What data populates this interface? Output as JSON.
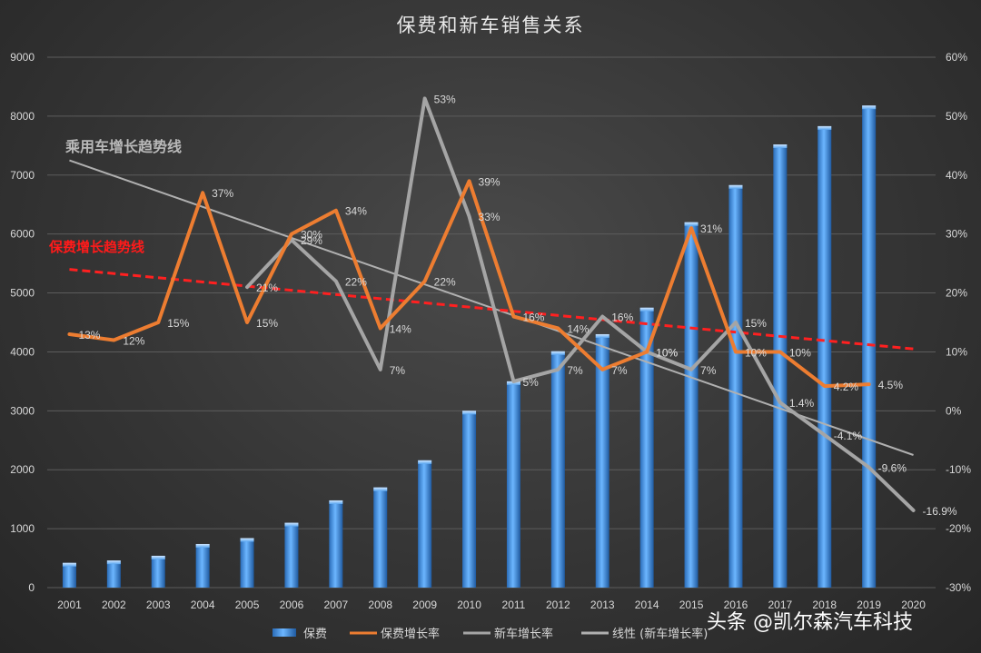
{
  "chart_data": {
    "type": "bar",
    "title": "保费和新车销售关系",
    "categories": [
      "2001",
      "2002",
      "2003",
      "2004",
      "2005",
      "2006",
      "2007",
      "2008",
      "2009",
      "2010",
      "2011",
      "2012",
      "2013",
      "2014",
      "2015",
      "2016",
      "2017",
      "2018",
      "2019",
      "2020"
    ],
    "left_axis": {
      "min": 0,
      "max": 9000,
      "step": 1000
    },
    "right_axis": {
      "min": -30,
      "max": 60,
      "step": 10,
      "suffix": "%"
    },
    "series": [
      {
        "name": "保费",
        "type": "bar",
        "axis": "left",
        "color": "#4a9be0",
        "values": [
          420,
          460,
          540,
          740,
          840,
          1100,
          1480,
          1700,
          2160,
          3000,
          3500,
          4010,
          4300,
          4750,
          6200,
          6830,
          7520,
          7830,
          8180,
          null
        ]
      },
      {
        "name": "保费增长率",
        "type": "line",
        "axis": "right",
        "color": "#ed7d31",
        "values": [
          13,
          12,
          15,
          37,
          15,
          30,
          34,
          14,
          22,
          39,
          16,
          14,
          7,
          10,
          31,
          10,
          10,
          4.2,
          4.5,
          null
        ],
        "labels": [
          "13%",
          "12%",
          "15%",
          "37%",
          "15%",
          "30%",
          "34%",
          "14%",
          "22%",
          "39%",
          "16%",
          "14%",
          "7%",
          "10%",
          "31%",
          "10%",
          "10%",
          "4.2%",
          "4.5%",
          ""
        ]
      },
      {
        "name": "新车增长率",
        "type": "line",
        "axis": "right",
        "color": "#a5a5a5",
        "values": [
          null,
          null,
          null,
          null,
          21,
          29,
          22,
          7,
          53,
          33,
          5,
          7,
          16,
          10,
          7,
          15,
          1.4,
          -4.1,
          -9.6,
          -16.9
        ],
        "labels": [
          "",
          "",
          "",
          "",
          "21%",
          "29%",
          "22%",
          "7%",
          "53%",
          "33%",
          "5%",
          "7%",
          "16%",
          "10%",
          "7%",
          "15%",
          "1.4%",
          "-4.1%",
          "-9.6%",
          "-16.9%"
        ]
      },
      {
        "name": "线性 (新车增长率)",
        "type": "trend",
        "axis": "right",
        "color": "#b0b0b0",
        "start": 42.5,
        "end": -7.5
      },
      {
        "name": "保费增长趋势",
        "type": "trend-dashed",
        "axis": "right",
        "color": "#ff2020",
        "start": 24,
        "end": 10.5,
        "in_legend": false
      }
    ],
    "annotations": {
      "car_trend": "乘用车增长趋势线",
      "premium_trend": "保费增长趋势线"
    },
    "legend": [
      "保费",
      "保费增长率",
      "新车增长率",
      "线性 (新车增长率)"
    ],
    "watermark": "头条 @凯尔森汽车科技"
  }
}
